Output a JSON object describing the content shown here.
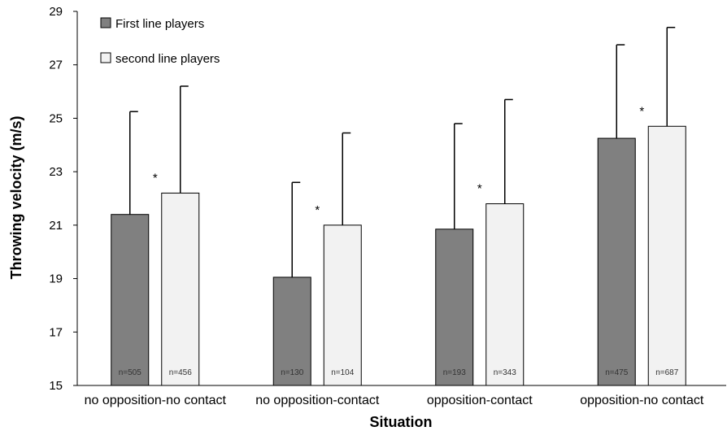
{
  "chart_data": {
    "type": "bar",
    "xlabel": "Situation",
    "ylabel": "Throwing velocity (m/s)",
    "ylim": [
      15,
      29
    ],
    "yticks": [
      15,
      17,
      19,
      21,
      23,
      25,
      27,
      29
    ],
    "legend_position": "top-left",
    "grid": false,
    "categories": [
      "no opposition-no contact",
      "no opposition-contact",
      "opposition-contact",
      "opposition-no contact"
    ],
    "series": [
      {
        "name": "First line players",
        "color": "#808080",
        "values": [
          21.4,
          19.05,
          20.85,
          24.25
        ],
        "error": [
          3.85,
          3.55,
          3.95,
          3.5
        ],
        "n_labels": [
          "n=505",
          "n=130",
          "n=193",
          "n=475"
        ]
      },
      {
        "name": "second line players",
        "color": "#f2f2f2",
        "values": [
          22.2,
          21.0,
          21.8,
          24.7
        ],
        "error": [
          4.0,
          3.45,
          3.9,
          3.7
        ],
        "n_labels": [
          "n=456",
          "n=104",
          "n=343",
          "n=687"
        ]
      }
    ],
    "annotations": [
      "*",
      "*",
      "*",
      "*"
    ]
  }
}
